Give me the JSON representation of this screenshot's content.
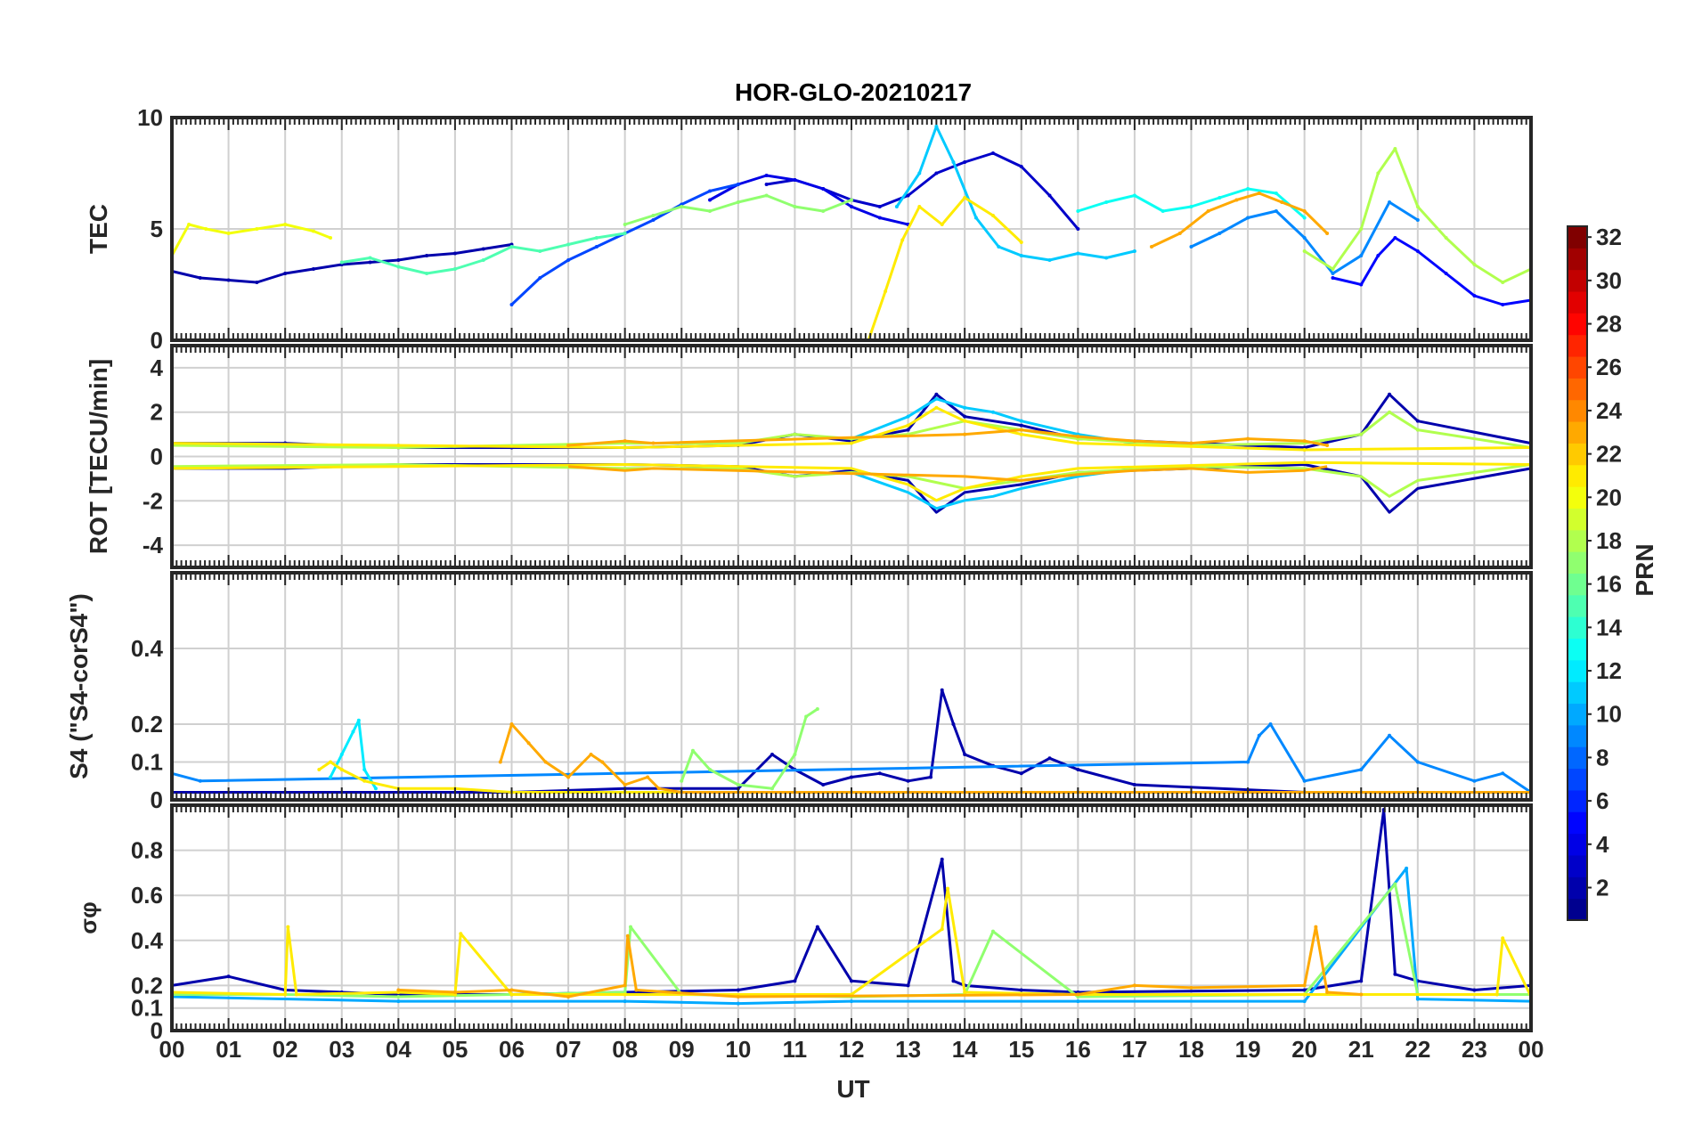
{
  "title": "HOR-GLO-20210217",
  "colors": {
    "grid": "#d0d0d0",
    "axis": "#262626",
    "jet": [
      "#00008f",
      "#0000ff",
      "#0080ff",
      "#00ffff",
      "#80ff80",
      "#ffff00",
      "#ff8000",
      "#ff0000",
      "#800000"
    ]
  },
  "chart_data": [
    {
      "type": "line",
      "id": "tec",
      "ylabel": "TEC",
      "ylim": [
        0,
        10
      ],
      "yticks": [
        0,
        5,
        10
      ],
      "yticklabels": [
        "0",
        "5",
        "10"
      ],
      "xlim": [
        0,
        24
      ],
      "series": [
        {
          "name": "PRN 2",
          "prn": 2,
          "x": [
            0,
            0.5,
            1,
            1.5,
            2,
            2.5,
            3,
            3.5,
            4,
            4.5,
            5,
            5.5,
            6
          ],
          "values": [
            3.1,
            2.8,
            2.7,
            2.6,
            3.0,
            3.2,
            3.4,
            3.5,
            3.6,
            3.8,
            3.9,
            4.1,
            4.3
          ]
        },
        {
          "name": "PRN 3",
          "prn": 3,
          "x": [
            10.5,
            11,
            11.5,
            12,
            12.5,
            13,
            13.5,
            14,
            14.5,
            15,
            15.5,
            16
          ],
          "values": [
            7.0,
            7.2,
            6.8,
            6.3,
            6.0,
            6.5,
            7.5,
            8.0,
            8.4,
            7.8,
            6.5,
            5.0
          ]
        },
        {
          "name": "PRN 4",
          "prn": 4,
          "x": [
            9.5,
            10,
            10.5,
            11,
            11.5,
            12,
            12.5,
            13
          ],
          "values": [
            6.3,
            7.0,
            7.4,
            7.2,
            6.8,
            6.0,
            5.5,
            5.2
          ]
        },
        {
          "name": "PRN 5",
          "prn": 5,
          "x": [
            20.5,
            21,
            21.3,
            21.6,
            22,
            22.5,
            23,
            23.5,
            24
          ],
          "values": [
            2.8,
            2.5,
            3.8,
            4.6,
            4.0,
            3.0,
            2.0,
            1.6,
            1.8
          ]
        },
        {
          "name": "PRN 7",
          "prn": 7,
          "x": [
            6,
            6.5,
            7,
            7.5,
            8,
            8.5,
            9,
            9.5,
            10
          ],
          "values": [
            1.6,
            2.8,
            3.6,
            4.2,
            4.8,
            5.4,
            6.1,
            6.7,
            7.0
          ]
        },
        {
          "name": "PRN 9",
          "prn": 9,
          "x": [
            18,
            18.5,
            19,
            19.5,
            20,
            20.5,
            21,
            21.5,
            22
          ],
          "values": [
            4.2,
            4.8,
            5.5,
            5.8,
            4.6,
            3.0,
            3.8,
            6.2,
            5.4
          ]
        },
        {
          "name": "PRN 11",
          "prn": 11,
          "x": [
            12.8,
            13.2,
            13.5,
            13.8,
            14.2,
            14.6,
            15,
            15.5,
            16,
            16.5,
            17
          ],
          "values": [
            6.0,
            7.5,
            9.6,
            8.0,
            5.5,
            4.2,
            3.8,
            3.6,
            3.9,
            3.7,
            4.0
          ]
        },
        {
          "name": "PRN 13",
          "prn": 13,
          "x": [
            16,
            16.5,
            17,
            17.5,
            18,
            18.5,
            19,
            19.5,
            20
          ],
          "values": [
            5.8,
            6.2,
            6.5,
            5.8,
            6.0,
            6.4,
            6.8,
            6.6,
            5.5
          ]
        },
        {
          "name": "PRN 15",
          "prn": 15,
          "x": [
            3,
            3.5,
            4,
            4.5,
            5,
            5.5,
            6,
            6.5,
            7,
            7.5,
            8
          ],
          "values": [
            3.5,
            3.7,
            3.3,
            3.0,
            3.2,
            3.6,
            4.2,
            4.0,
            4.3,
            4.6,
            4.8
          ]
        },
        {
          "name": "PRN 17",
          "prn": 17,
          "x": [
            8,
            8.5,
            9,
            9.5,
            10,
            10.5,
            11,
            11.5,
            12
          ],
          "values": [
            5.2,
            5.6,
            6.0,
            5.8,
            6.2,
            6.5,
            6.0,
            5.8,
            6.3
          ]
        },
        {
          "name": "PRN 18",
          "prn": 18,
          "x": [
            20,
            20.5,
            21,
            21.3,
            21.6,
            22,
            22.5,
            23,
            23.5,
            24
          ],
          "values": [
            4.0,
            3.2,
            5.0,
            7.5,
            8.6,
            6.0,
            4.6,
            3.4,
            2.6,
            3.2
          ]
        },
        {
          "name": "PRN 20",
          "prn": 20,
          "x": [
            0,
            0.3,
            0.6,
            1,
            1.5,
            2,
            2.5,
            2.8
          ],
          "values": [
            3.8,
            5.2,
            5.0,
            4.8,
            5.0,
            5.2,
            4.9,
            4.6
          ]
        },
        {
          "name": "PRN 21",
          "prn": 21,
          "x": [
            12.3,
            12.6,
            12.9,
            13.2,
            13.6,
            14,
            14.5,
            15
          ],
          "values": [
            0.0,
            2.2,
            4.5,
            6.0,
            5.2,
            6.4,
            5.6,
            4.4
          ]
        },
        {
          "name": "PRN 23",
          "prn": 23,
          "x": [
            17.3,
            17.8,
            18.3,
            18.8,
            19.2,
            19.6,
            20,
            20.4
          ],
          "values": [
            4.2,
            4.8,
            5.8,
            6.3,
            6.6,
            6.2,
            5.8,
            4.8
          ]
        }
      ]
    },
    {
      "type": "line",
      "id": "rot",
      "ylabel": "ROT [TECU/min]",
      "ylim": [
        -5,
        5
      ],
      "yticks": [
        -4,
        -2,
        0,
        2,
        4
      ],
      "yticklabels": [
        "-4",
        "-2",
        "0",
        "2",
        "4"
      ],
      "xlim": [
        0,
        24
      ],
      "series": [
        {
          "name": "PRN 2",
          "prn": 2,
          "x": [
            0,
            2,
            4,
            6,
            8,
            10,
            11,
            12,
            13,
            13.5,
            14,
            15,
            16,
            20,
            21,
            21.5,
            22,
            24
          ],
          "values": [
            0.6,
            0.6,
            0.4,
            0.4,
            0.4,
            0.5,
            1.0,
            0.7,
            1.2,
            2.8,
            1.8,
            1.4,
            0.8,
            0.4,
            1.0,
            2.8,
            1.6,
            0.6
          ]
        },
        {
          "name": "PRN 11",
          "prn": 11,
          "x": [
            12,
            13,
            13.5,
            14,
            14.5,
            15,
            16,
            17
          ],
          "values": [
            0.8,
            1.8,
            2.6,
            2.2,
            2.0,
            1.6,
            1.0,
            0.6
          ]
        },
        {
          "name": "PRN 18",
          "prn": 18,
          "x": [
            0,
            4,
            8,
            10,
            11,
            12,
            13,
            14,
            15,
            16,
            18,
            20,
            21,
            21.5,
            22,
            24
          ],
          "values": [
            0.5,
            0.4,
            0.6,
            0.6,
            1.0,
            0.8,
            1.0,
            1.6,
            1.2,
            0.8,
            0.5,
            0.6,
            1.0,
            2.0,
            1.2,
            0.4
          ]
        },
        {
          "name": "PRN 21",
          "prn": 21,
          "x": [
            0,
            4,
            8,
            12,
            13,
            13.5,
            14,
            15,
            16,
            20,
            24
          ],
          "values": [
            0.6,
            0.5,
            0.4,
            0.6,
            1.4,
            2.2,
            1.6,
            1.0,
            0.6,
            0.3,
            0.4
          ]
        },
        {
          "name": "PRN 23",
          "prn": 23,
          "x": [
            7,
            8,
            8.5,
            14,
            15,
            16,
            17,
            18,
            19,
            20,
            20.4
          ],
          "values": [
            0.5,
            0.7,
            0.6,
            1.0,
            1.2,
            0.9,
            0.7,
            0.6,
            0.8,
            0.7,
            0.5
          ]
        }
      ]
    },
    {
      "type": "line",
      "id": "s4",
      "ylabel": "S4 (\"S4-corS4\")",
      "ylim": [
        0,
        0.6
      ],
      "yticks": [
        0,
        0.1,
        0.2,
        0.4
      ],
      "yticklabels": [
        "0",
        "0.1",
        "0.2",
        "0.4"
      ],
      "xlim": [
        0,
        24
      ],
      "series": [
        {
          "name": "PRN 2",
          "prn": 2,
          "x": [
            0,
            2,
            4,
            6,
            8,
            10,
            10.6,
            11,
            11.5,
            12,
            12.5,
            13,
            13.4,
            13.6,
            13.8,
            14,
            14.5,
            15,
            15.5,
            16,
            17,
            20,
            24
          ],
          "values": [
            0.02,
            0.02,
            0.02,
            0.02,
            0.03,
            0.03,
            0.12,
            0.08,
            0.04,
            0.06,
            0.07,
            0.05,
            0.06,
            0.29,
            0.2,
            0.12,
            0.09,
            0.07,
            0.11,
            0.08,
            0.04,
            0.02,
            0.02
          ]
        },
        {
          "name": "PRN 9",
          "prn": 9,
          "x": [
            0,
            0.5,
            19,
            19.2,
            19.4,
            20,
            21,
            21.5,
            22,
            23,
            23.5,
            24
          ],
          "values": [
            0.07,
            0.05,
            0.1,
            0.17,
            0.2,
            0.05,
            0.08,
            0.17,
            0.1,
            0.05,
            0.07,
            0.02
          ]
        },
        {
          "name": "PRN 12",
          "prn": 12,
          "x": [
            2.8,
            3.0,
            3.2,
            3.3,
            3.4,
            3.6
          ],
          "values": [
            0.06,
            0.12,
            0.18,
            0.21,
            0.08,
            0.03
          ]
        },
        {
          "name": "PRN 17",
          "prn": 17,
          "x": [
            9,
            9.2,
            9.5,
            10,
            10.6,
            11,
            11.2,
            11.4
          ],
          "values": [
            0.05,
            0.13,
            0.08,
            0.04,
            0.03,
            0.12,
            0.22,
            0.24
          ]
        },
        {
          "name": "PRN 21",
          "prn": 21,
          "x": [
            2.6,
            2.8,
            3.0,
            3.4,
            4,
            5,
            6,
            8,
            12,
            16,
            20,
            24
          ],
          "values": [
            0.08,
            0.1,
            0.08,
            0.05,
            0.03,
            0.03,
            0.02,
            0.02,
            0.02,
            0.02,
            0.02,
            0.02
          ]
        },
        {
          "name": "PRN 23",
          "prn": 23,
          "x": [
            5.8,
            6.0,
            6.3,
            6.6,
            7,
            7.4,
            7.6,
            8,
            8.4,
            8.6,
            9,
            12,
            16,
            20,
            24
          ],
          "values": [
            0.1,
            0.2,
            0.15,
            0.1,
            0.06,
            0.12,
            0.1,
            0.04,
            0.06,
            0.03,
            0.02,
            0.02,
            0.02,
            0.02,
            0.02
          ]
        }
      ]
    },
    {
      "type": "line",
      "id": "sigma",
      "ylabel": "σφ",
      "ylim": [
        0,
        1.0
      ],
      "yticks": [
        0,
        0.1,
        0.2,
        0.4,
        0.6,
        0.8
      ],
      "yticklabels": [
        "0",
        "0.1",
        "0.2",
        "0.4",
        "0.6",
        "0.8"
      ],
      "xlim": [
        0,
        24
      ],
      "series": [
        {
          "name": "PRN 2",
          "prn": 2,
          "x": [
            0,
            1,
            2,
            3,
            4,
            6,
            8,
            10,
            11,
            11.4,
            12,
            13,
            13.6,
            13.8,
            14,
            15,
            16,
            20,
            21,
            21.4,
            21.6,
            22,
            23,
            24
          ],
          "values": [
            0.2,
            0.24,
            0.18,
            0.17,
            0.16,
            0.16,
            0.17,
            0.18,
            0.22,
            0.46,
            0.22,
            0.2,
            0.76,
            0.22,
            0.2,
            0.18,
            0.17,
            0.18,
            0.22,
            0.98,
            0.25,
            0.22,
            0.18,
            0.2
          ]
        },
        {
          "name": "PRN 10",
          "prn": 10,
          "x": [
            0,
            4,
            8,
            10,
            12,
            16,
            20,
            21.8,
            22,
            24
          ],
          "values": [
            0.15,
            0.13,
            0.13,
            0.12,
            0.13,
            0.13,
            0.13,
            0.72,
            0.14,
            0.13
          ]
        },
        {
          "name": "PRN 17",
          "prn": 17,
          "x": [
            0,
            2,
            4,
            8,
            8.1,
            9,
            12,
            14,
            14.5,
            16,
            20,
            21.6,
            22,
            24
          ],
          "values": [
            0.16,
            0.16,
            0.15,
            0.17,
            0.46,
            0.16,
            0.15,
            0.16,
            0.44,
            0.15,
            0.16,
            0.65,
            0.16,
            0.16
          ]
        },
        {
          "name": "PRN 21",
          "prn": 21,
          "x": [
            0,
            2,
            2.05,
            2.2,
            4,
            5,
            5.1,
            6,
            8,
            12,
            13.6,
            13.7,
            14,
            16,
            20,
            23.4,
            23.5,
            24
          ],
          "values": [
            0.17,
            0.16,
            0.46,
            0.16,
            0.17,
            0.16,
            0.43,
            0.16,
            0.16,
            0.16,
            0.45,
            0.63,
            0.17,
            0.16,
            0.16,
            0.16,
            0.41,
            0.15
          ]
        },
        {
          "name": "PRN 23",
          "prn": 23,
          "x": [
            4,
            5,
            6,
            7,
            8,
            8.05,
            8.2,
            10,
            16,
            17,
            18,
            20,
            20.2,
            20.4,
            21
          ],
          "values": [
            0.18,
            0.17,
            0.18,
            0.15,
            0.2,
            0.42,
            0.18,
            0.15,
            0.16,
            0.2,
            0.19,
            0.2,
            0.46,
            0.17,
            0.16
          ]
        }
      ]
    }
  ],
  "xaxis": {
    "label": "UT",
    "ticks": [
      "00",
      "01",
      "02",
      "03",
      "04",
      "05",
      "06",
      "07",
      "08",
      "09",
      "10",
      "11",
      "12",
      "13",
      "14",
      "15",
      "16",
      "17",
      "18",
      "19",
      "20",
      "21",
      "22",
      "23",
      "00"
    ]
  },
  "colorbar": {
    "label": "PRN",
    "range": [
      1,
      32
    ],
    "ticks": [
      "2",
      "4",
      "6",
      "8",
      "10",
      "12",
      "14",
      "16",
      "18",
      "20",
      "22",
      "24",
      "26",
      "28",
      "30",
      "32"
    ]
  }
}
